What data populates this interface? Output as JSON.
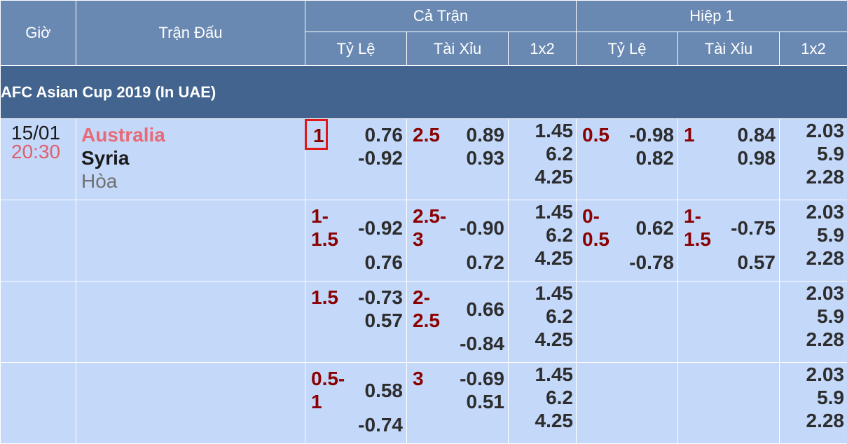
{
  "header": {
    "gio": "Giờ",
    "tran_dau": "Trận Đấu",
    "ca_tran": "Cả Trận",
    "hiep_1": "Hiệp 1",
    "sub": {
      "ty_le": "Tỷ Lệ",
      "tai_xiu": "Tài Xỉu",
      "x12": "1x2"
    }
  },
  "league": "AFC Asian Cup 2019 (In UAE)",
  "match": {
    "date": "15/01",
    "time": "20:30",
    "home": "Australia",
    "away": "Syria",
    "draw": "Hòa"
  },
  "rows": [
    {
      "ft_hdp": {
        "line": "1",
        "o1": "0.76",
        "o2": "-0.92"
      },
      "ft_ou": {
        "line": "2.5",
        "o1": "0.89",
        "o2": "0.93"
      },
      "ft_1x2": [
        "1.45",
        "6.2",
        "4.25"
      ],
      "h1_hdp": {
        "line": "0.5",
        "o1": "-0.98",
        "o2": "0.82"
      },
      "h1_ou": {
        "line": "1",
        "o1": "0.84",
        "o2": "0.98"
      },
      "h1_1x2": [
        "2.03",
        "5.9",
        "2.28"
      ]
    },
    {
      "ft_hdp": {
        "line": "1-1.5",
        "o1": "-0.92",
        "o2": "0.76"
      },
      "ft_ou": {
        "line": "2.5-3",
        "o1": "-0.90",
        "o2": "0.72"
      },
      "ft_1x2": [
        "1.45",
        "6.2",
        "4.25"
      ],
      "h1_hdp": {
        "line": "0-0.5",
        "o1": "0.62",
        "o2": "-0.78"
      },
      "h1_ou": {
        "line": "1-1.5",
        "o1": "-0.75",
        "o2": "0.57"
      },
      "h1_1x2": [
        "2.03",
        "5.9",
        "2.28"
      ]
    },
    {
      "ft_hdp": {
        "line": "1.5",
        "o1": "-0.73",
        "o2": "0.57"
      },
      "ft_ou": {
        "line": "2-2.5",
        "o1": "0.66",
        "o2": "-0.84"
      },
      "ft_1x2": [
        "1.45",
        "6.2",
        "4.25"
      ],
      "h1_hdp": {
        "line": "",
        "o1": "",
        "o2": ""
      },
      "h1_ou": {
        "line": "",
        "o1": "",
        "o2": ""
      },
      "h1_1x2": [
        "2.03",
        "5.9",
        "2.28"
      ]
    },
    {
      "ft_hdp": {
        "line": "0.5-1",
        "o1": "0.58",
        "o2": "-0.74"
      },
      "ft_ou": {
        "line": "3",
        "o1": "-0.69",
        "o2": "0.51"
      },
      "ft_1x2": [
        "1.45",
        "6.2",
        "4.25"
      ],
      "h1_hdp": {
        "line": "",
        "o1": "",
        "o2": ""
      },
      "h1_ou": {
        "line": "",
        "o1": "",
        "o2": ""
      },
      "h1_1x2": [
        "2.03",
        "5.9",
        "2.28"
      ]
    }
  ]
}
